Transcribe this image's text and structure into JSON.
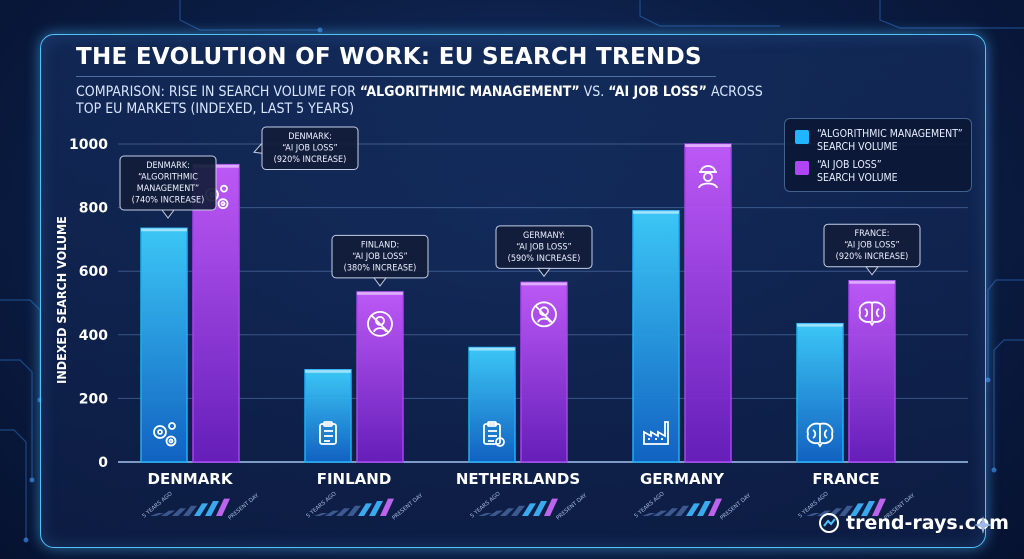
{
  "header": {
    "title": "THE EVOLUTION OF WORK: EU SEARCH TRENDS",
    "subtitle_parts": [
      {
        "text": "COMPARISON: RISE IN SEARCH VOLUME FOR ",
        "bold": false
      },
      {
        "text": "“ALGORITHMIC MANAGEMENT”",
        "bold": true
      },
      {
        "text": " vs. ",
        "bold": false
      },
      {
        "text": "“AI JOB LOSS”",
        "bold": true
      },
      {
        "text": " ACROSS TOP EU MARKETS (INDEXED, LAST 5 YEARS)",
        "bold": false
      }
    ]
  },
  "legend": {
    "items": [
      {
        "label_line1": "“ALGORITHMIC MANAGEMENT”",
        "label_line2": "SEARCH VOLUME",
        "color": "#1fb6ff"
      },
      {
        "label_line1": "“AI JOB LOSS”",
        "label_line2": "SEARCH VOLUME",
        "color": "#b045f5"
      }
    ]
  },
  "chart_data": {
    "type": "bar",
    "categories": [
      "DENMARK",
      "FINLAND",
      "NETHERLANDS",
      "GERMANY",
      "FRANCE"
    ],
    "series": [
      {
        "name": "“ALGORITHMIC MANAGEMENT” SEARCH VOLUME",
        "values": [
          735,
          290,
          360,
          790,
          435
        ],
        "color": "#1fb6ff",
        "icons": [
          "gears-icon",
          "clipboard-icon",
          "clipboard-chart-icon",
          "factory-icon",
          "brain-icon"
        ]
      },
      {
        "name": "“AI JOB LOSS” SEARCH VOLUME",
        "values": [
          935,
          535,
          565,
          1000,
          570
        ],
        "color": "#b045f5",
        "icons": [
          "gears-icon",
          "no-worker-icon",
          "no-worker-icon",
          "worker-icon",
          "brain-icon"
        ]
      }
    ],
    "ylabel": "INDEXED SEARCH VOLUME",
    "ylim": [
      0,
      1000
    ],
    "yticks": [
      0,
      200,
      400,
      600,
      800,
      1000
    ],
    "grid": true,
    "legend_position": "top-right",
    "annotations": [
      {
        "category": "DENMARK",
        "series": 0,
        "lines": [
          "DENMARK:",
          "“ALGORITHMIC",
          "MANAGEMENT”",
          "(740% INCREASE)"
        ]
      },
      {
        "category": "DENMARK",
        "series": 1,
        "lines": [
          "DENMARK:",
          "“AI JOB LOSS”",
          "(920% INCREASE)"
        ]
      },
      {
        "category": "FINLAND",
        "series": 1,
        "lines": [
          "FINLAND:",
          "“AI JOB LOSS”",
          "(380% INCREASE)"
        ]
      },
      {
        "category": "NETHERLANDS",
        "series": 1,
        "lines": [
          "GERMANY:",
          "“AI JOB LOSS”",
          "(590% INCREASE)"
        ]
      },
      {
        "category": "FRANCE",
        "series": 1,
        "lines": [
          "FRANCE:",
          "“AI JOB LOSS”",
          "(920% INCREASE)"
        ]
      }
    ],
    "mini_trend": {
      "start_label": "5 YEARS AGO",
      "end_label": "PRESENT DAY"
    }
  },
  "watermark": {
    "text": "trend-rays.com"
  }
}
